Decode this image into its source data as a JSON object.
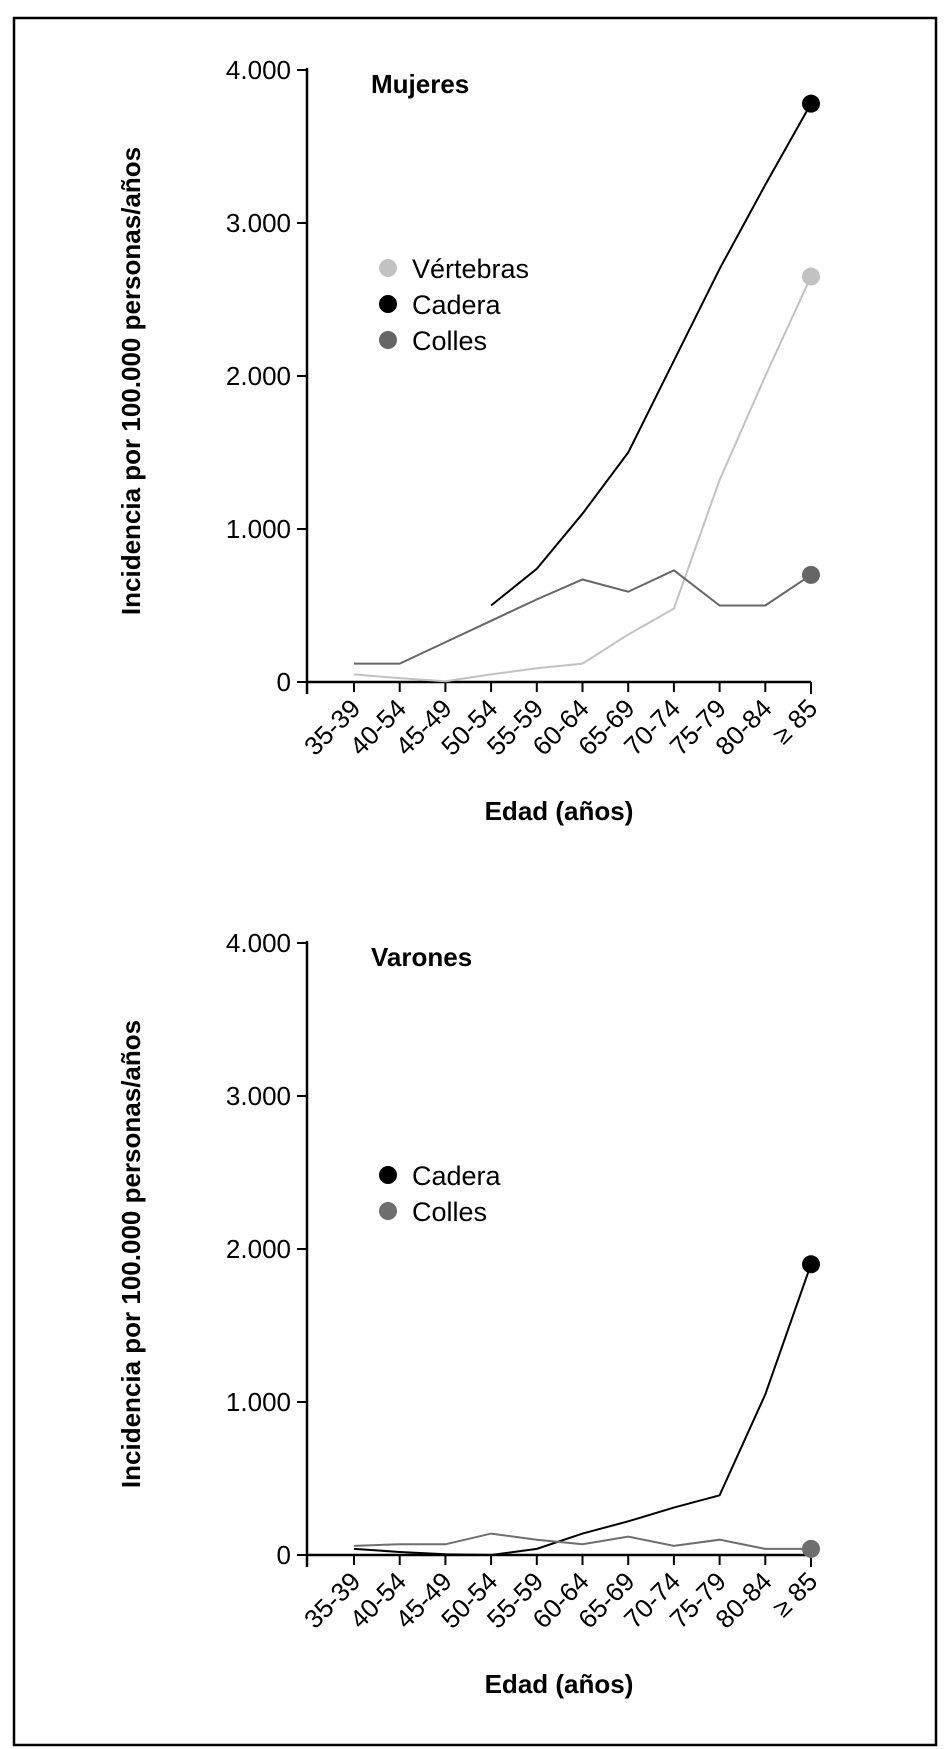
{
  "chart_data": [
    {
      "type": "line",
      "title": "Mujeres",
      "xlabel": "Edad (años)",
      "ylabel": "Incidencia por 100.000 personas/años",
      "ylim": [
        0,
        4000
      ],
      "yticks": [
        "0",
        "1.000",
        "2.000",
        "3.000",
        "4.000"
      ],
      "ytick_values": [
        0,
        1000,
        2000,
        3000,
        4000
      ],
      "categories": [
        "35-39",
        "40-54",
        "45-49",
        "50-54",
        "55-59",
        "60-64",
        "65-69",
        "70-74",
        "75-79",
        "80-84",
        "≥ 85"
      ],
      "legend_position": "upper-left",
      "series": [
        {
          "name": "Vértebras",
          "color": "#c2c2c2",
          "values": [
            50,
            25,
            5,
            50,
            90,
            120,
            310,
            480,
            1320,
            2000,
            2650
          ]
        },
        {
          "name": "Cadera",
          "color": "#000000",
          "values": [
            null,
            null,
            null,
            500,
            740,
            1100,
            1500,
            2100,
            2700,
            3250,
            3780
          ]
        },
        {
          "name": "Colles",
          "color": "#666666",
          "values": [
            120,
            120,
            260,
            400,
            540,
            670,
            590,
            730,
            500,
            500,
            700
          ]
        }
      ]
    },
    {
      "type": "line",
      "title": "Varones",
      "xlabel": "Edad (años)",
      "ylabel": "Incidencia por 100.000 personas/años",
      "ylim": [
        0,
        4000
      ],
      "yticks": [
        "0",
        "1.000",
        "2.000",
        "3.000",
        "4.000"
      ],
      "ytick_values": [
        0,
        1000,
        2000,
        3000,
        4000
      ],
      "categories": [
        "35-39",
        "40-54",
        "45-49",
        "50-54",
        "55-59",
        "60-64",
        "65-69",
        "70-74",
        "75-79",
        "80-84",
        "≥ 85"
      ],
      "legend_position": "upper-left",
      "series": [
        {
          "name": "Cadera",
          "color": "#000000",
          "values": [
            40,
            20,
            5,
            0,
            40,
            140,
            220,
            310,
            390,
            1050,
            1900
          ]
        },
        {
          "name": "Colles",
          "color": "#6e6e6e",
          "values": [
            60,
            70,
            70,
            140,
            100,
            70,
            120,
            60,
            100,
            40,
            40
          ]
        }
      ]
    }
  ]
}
